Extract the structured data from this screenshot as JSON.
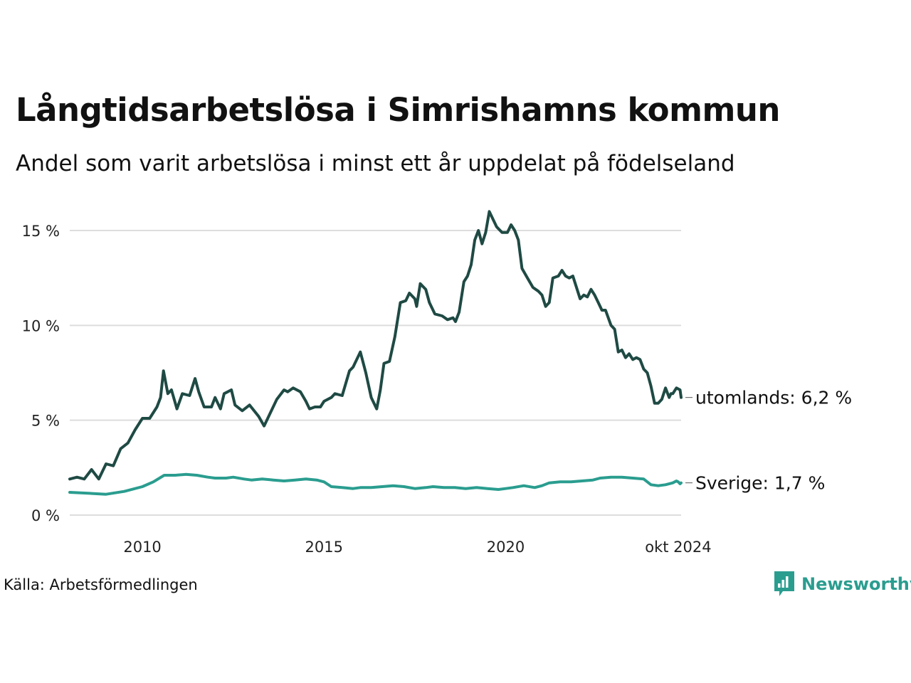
{
  "header": {
    "title": "Långtidsarbetslösa i Simrishamns kommun",
    "subtitle": "Andel som varit arbetslösa i minst ett år uppdelat på födelseland"
  },
  "footer": {
    "source": "Källa: Arbetsförmedlingen",
    "brand": "Newsworthy"
  },
  "colors": {
    "utomlands": "#1f4a44",
    "sverige": "#2a9d8f",
    "grid": "#dddddd",
    "brand": "#2a9d8f"
  },
  "icons": {
    "brand_logo": "newsworthy-logo-icon"
  },
  "chart_data": {
    "type": "line",
    "title": "Långtidsarbetslösa i Simrishamns kommun",
    "subtitle": "Andel som varit arbetslösa i minst ett år uppdelat på födelseland",
    "ylim": [
      0,
      16
    ],
    "xlim": [
      2008.0,
      2024.83
    ],
    "y_ticks": [
      0,
      5,
      10,
      15
    ],
    "y_tick_labels": [
      "0 %",
      "5 %",
      "10 %",
      "15 %"
    ],
    "x_ticks": [
      2010,
      2015,
      2020,
      2024.75
    ],
    "x_tick_labels": [
      "2010",
      "2015",
      "2020",
      "okt 2024"
    ],
    "grid": "horizontal",
    "series": [
      {
        "name": "utomlands",
        "end_label": "utomlands: 6,2 %",
        "points": [
          [
            2008.0,
            1.9
          ],
          [
            2008.2,
            2.0
          ],
          [
            2008.4,
            1.9
          ],
          [
            2008.6,
            2.4
          ],
          [
            2008.8,
            1.9
          ],
          [
            2009.0,
            2.7
          ],
          [
            2009.2,
            2.6
          ],
          [
            2009.4,
            3.5
          ],
          [
            2009.6,
            3.8
          ],
          [
            2009.8,
            4.5
          ],
          [
            2010.0,
            5.1
          ],
          [
            2010.2,
            5.1
          ],
          [
            2010.4,
            5.7
          ],
          [
            2010.5,
            6.2
          ],
          [
            2010.58,
            7.6
          ],
          [
            2010.7,
            6.4
          ],
          [
            2010.8,
            6.6
          ],
          [
            2010.95,
            5.6
          ],
          [
            2011.1,
            6.4
          ],
          [
            2011.3,
            6.3
          ],
          [
            2011.45,
            7.2
          ],
          [
            2011.55,
            6.5
          ],
          [
            2011.7,
            5.7
          ],
          [
            2011.9,
            5.7
          ],
          [
            2012.0,
            6.2
          ],
          [
            2012.15,
            5.6
          ],
          [
            2012.25,
            6.4
          ],
          [
            2012.45,
            6.6
          ],
          [
            2012.55,
            5.8
          ],
          [
            2012.75,
            5.5
          ],
          [
            2012.95,
            5.8
          ],
          [
            2013.2,
            5.2
          ],
          [
            2013.35,
            4.7
          ],
          [
            2013.5,
            5.3
          ],
          [
            2013.7,
            6.1
          ],
          [
            2013.9,
            6.6
          ],
          [
            2014.0,
            6.5
          ],
          [
            2014.15,
            6.7
          ],
          [
            2014.35,
            6.5
          ],
          [
            2014.5,
            6.0
          ],
          [
            2014.6,
            5.6
          ],
          [
            2014.75,
            5.7
          ],
          [
            2014.9,
            5.7
          ],
          [
            2015.0,
            6.0
          ],
          [
            2015.2,
            6.2
          ],
          [
            2015.3,
            6.4
          ],
          [
            2015.5,
            6.3
          ],
          [
            2015.7,
            7.6
          ],
          [
            2015.8,
            7.8
          ],
          [
            2015.9,
            8.2
          ],
          [
            2016.0,
            8.6
          ],
          [
            2016.15,
            7.5
          ],
          [
            2016.3,
            6.2
          ],
          [
            2016.45,
            5.6
          ],
          [
            2016.55,
            6.6
          ],
          [
            2016.65,
            8.0
          ],
          [
            2016.8,
            8.1
          ],
          [
            2016.95,
            9.4
          ],
          [
            2017.1,
            11.2
          ],
          [
            2017.25,
            11.3
          ],
          [
            2017.35,
            11.7
          ],
          [
            2017.5,
            11.4
          ],
          [
            2017.55,
            11.0
          ],
          [
            2017.65,
            12.2
          ],
          [
            2017.8,
            11.9
          ],
          [
            2017.9,
            11.2
          ],
          [
            2018.05,
            10.6
          ],
          [
            2018.25,
            10.5
          ],
          [
            2018.4,
            10.3
          ],
          [
            2018.55,
            10.4
          ],
          [
            2018.62,
            10.2
          ],
          [
            2018.72,
            10.7
          ],
          [
            2018.85,
            12.3
          ],
          [
            2018.95,
            12.6
          ],
          [
            2019.05,
            13.2
          ],
          [
            2019.15,
            14.5
          ],
          [
            2019.25,
            15.0
          ],
          [
            2019.35,
            14.3
          ],
          [
            2019.45,
            14.9
          ],
          [
            2019.55,
            16.0
          ],
          [
            2019.65,
            15.6
          ],
          [
            2019.75,
            15.2
          ],
          [
            2019.9,
            14.9
          ],
          [
            2020.05,
            14.9
          ],
          [
            2020.15,
            15.3
          ],
          [
            2020.25,
            15.0
          ],
          [
            2020.35,
            14.5
          ],
          [
            2020.45,
            13.0
          ],
          [
            2020.6,
            12.5
          ],
          [
            2020.75,
            12.0
          ],
          [
            2020.9,
            11.8
          ],
          [
            2021.0,
            11.6
          ],
          [
            2021.1,
            11.0
          ],
          [
            2021.2,
            11.2
          ],
          [
            2021.3,
            12.5
          ],
          [
            2021.45,
            12.6
          ],
          [
            2021.55,
            12.9
          ],
          [
            2021.65,
            12.6
          ],
          [
            2021.75,
            12.5
          ],
          [
            2021.85,
            12.6
          ],
          [
            2021.95,
            12.0
          ],
          [
            2022.05,
            11.4
          ],
          [
            2022.15,
            11.6
          ],
          [
            2022.25,
            11.5
          ],
          [
            2022.35,
            11.9
          ],
          [
            2022.45,
            11.6
          ],
          [
            2022.55,
            11.2
          ],
          [
            2022.65,
            10.8
          ],
          [
            2022.75,
            10.8
          ],
          [
            2022.9,
            10.0
          ],
          [
            2023.0,
            9.8
          ],
          [
            2023.1,
            8.6
          ],
          [
            2023.2,
            8.7
          ],
          [
            2023.3,
            8.3
          ],
          [
            2023.4,
            8.5
          ],
          [
            2023.5,
            8.2
          ],
          [
            2023.6,
            8.3
          ],
          [
            2023.7,
            8.2
          ],
          [
            2023.8,
            7.7
          ],
          [
            2023.9,
            7.5
          ],
          [
            2024.0,
            6.8
          ],
          [
            2024.1,
            5.9
          ],
          [
            2024.2,
            5.9
          ],
          [
            2024.3,
            6.1
          ],
          [
            2024.4,
            6.7
          ],
          [
            2024.5,
            6.2
          ],
          [
            2024.55,
            6.4
          ],
          [
            2024.6,
            6.4
          ],
          [
            2024.7,
            6.7
          ],
          [
            2024.8,
            6.6
          ],
          [
            2024.83,
            6.2
          ]
        ]
      },
      {
        "name": "Sverige",
        "end_label": "Sverige: 1,7 %",
        "points": [
          [
            2008.0,
            1.2
          ],
          [
            2008.5,
            1.15
          ],
          [
            2009.0,
            1.1
          ],
          [
            2009.5,
            1.25
          ],
          [
            2010.0,
            1.5
          ],
          [
            2010.3,
            1.75
          ],
          [
            2010.6,
            2.1
          ],
          [
            2010.9,
            2.1
          ],
          [
            2011.2,
            2.15
          ],
          [
            2011.5,
            2.1
          ],
          [
            2011.8,
            2.0
          ],
          [
            2012.0,
            1.95
          ],
          [
            2012.3,
            1.95
          ],
          [
            2012.5,
            2.0
          ],
          [
            2012.8,
            1.9
          ],
          [
            2013.0,
            1.85
          ],
          [
            2013.3,
            1.9
          ],
          [
            2013.6,
            1.85
          ],
          [
            2013.9,
            1.8
          ],
          [
            2014.2,
            1.85
          ],
          [
            2014.5,
            1.9
          ],
          [
            2014.8,
            1.85
          ],
          [
            2015.0,
            1.75
          ],
          [
            2015.2,
            1.5
          ],
          [
            2015.5,
            1.45
          ],
          [
            2015.8,
            1.4
          ],
          [
            2016.0,
            1.45
          ],
          [
            2016.3,
            1.45
          ],
          [
            2016.6,
            1.5
          ],
          [
            2016.9,
            1.55
          ],
          [
            2017.2,
            1.5
          ],
          [
            2017.5,
            1.4
          ],
          [
            2017.8,
            1.45
          ],
          [
            2018.0,
            1.5
          ],
          [
            2018.3,
            1.45
          ],
          [
            2018.6,
            1.45
          ],
          [
            2018.9,
            1.4
          ],
          [
            2019.2,
            1.45
          ],
          [
            2019.5,
            1.4
          ],
          [
            2019.8,
            1.35
          ],
          [
            2020.0,
            1.4
          ],
          [
            2020.2,
            1.45
          ],
          [
            2020.5,
            1.55
          ],
          [
            2020.8,
            1.45
          ],
          [
            2021.0,
            1.55
          ],
          [
            2021.2,
            1.7
          ],
          [
            2021.5,
            1.75
          ],
          [
            2021.8,
            1.75
          ],
          [
            2022.1,
            1.8
          ],
          [
            2022.4,
            1.85
          ],
          [
            2022.6,
            1.95
          ],
          [
            2022.9,
            2.0
          ],
          [
            2023.2,
            2.0
          ],
          [
            2023.5,
            1.95
          ],
          [
            2023.8,
            1.9
          ],
          [
            2024.0,
            1.6
          ],
          [
            2024.2,
            1.55
          ],
          [
            2024.4,
            1.6
          ],
          [
            2024.6,
            1.7
          ],
          [
            2024.7,
            1.8
          ],
          [
            2024.75,
            1.75
          ],
          [
            2024.8,
            1.65
          ],
          [
            2024.83,
            1.7
          ]
        ]
      }
    ]
  }
}
